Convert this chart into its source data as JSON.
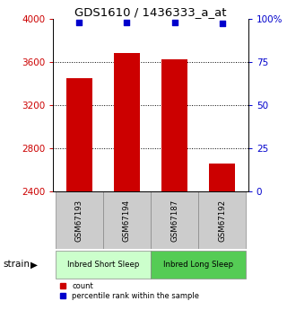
{
  "title": "GDS1610 / 1436333_a_at",
  "samples": [
    "GSM67193",
    "GSM67194",
    "GSM67187",
    "GSM67192"
  ],
  "counts": [
    3450,
    3680,
    3620,
    2660
  ],
  "percentiles": [
    98,
    98,
    98,
    97
  ],
  "ylim_left": [
    2400,
    4000
  ],
  "ylim_right": [
    0,
    100
  ],
  "yticks_left": [
    2400,
    2800,
    3200,
    3600,
    4000
  ],
  "yticks_right": [
    0,
    25,
    50,
    75,
    100
  ],
  "ytick_labels_right": [
    "0",
    "25",
    "50",
    "75",
    "100%"
  ],
  "groups": [
    {
      "label": "Inbred Short Sleep",
      "samples": [
        0,
        1
      ],
      "color": "#ccffcc"
    },
    {
      "label": "Inbred Long Sleep",
      "samples": [
        2,
        3
      ],
      "color": "#55cc55"
    }
  ],
  "bar_color": "#cc0000",
  "dot_color": "#0000cc",
  "left_tick_color": "#cc0000",
  "right_tick_color": "#0000cc",
  "bar_width": 0.55,
  "dot_size": 18,
  "gridline_ticks": [
    2800,
    3200,
    3600
  ]
}
